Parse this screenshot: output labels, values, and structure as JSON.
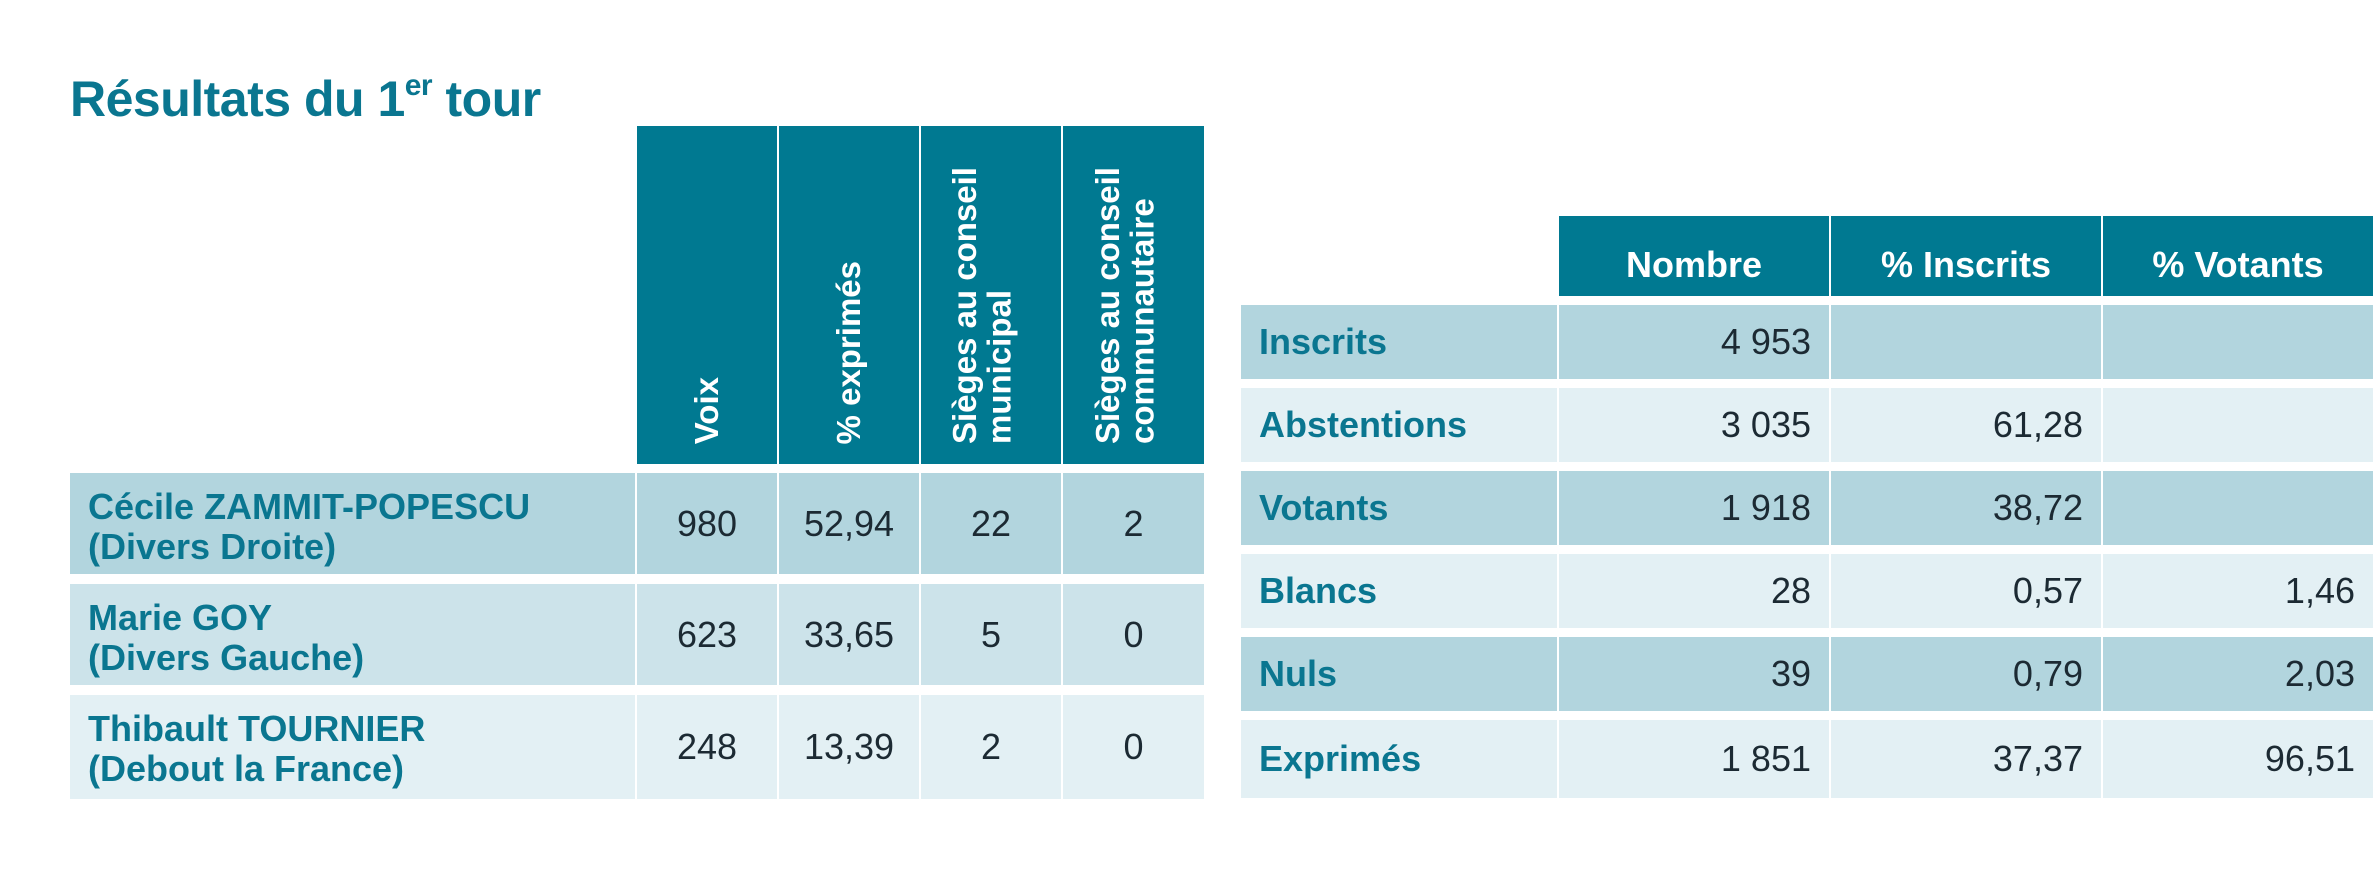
{
  "title": {
    "main": "Résultats du 1",
    "sup": "er",
    "end": " tour"
  },
  "results": {
    "headers": [
      "Voix",
      "% exprimés",
      "Sièges au conseil municipal",
      "Sièges au conseil communautaire"
    ],
    "rows": [
      {
        "name": "Cécile ZAMMIT-POPESCU",
        "party": "(Divers Droite)",
        "voix": "980",
        "pct": "52,94",
        "municipal": "22",
        "communautaire": "2"
      },
      {
        "name": "Marie GOY",
        "party": "(Divers Gauche)",
        "voix": "623",
        "pct": "33,65",
        "municipal": "5",
        "communautaire": "0"
      },
      {
        "name": "Thibault TOURNIER",
        "party": "(Debout la France)",
        "voix": "248",
        "pct": "13,39",
        "municipal": "2",
        "communautaire": "0"
      }
    ]
  },
  "stats": {
    "headers": [
      "Nombre",
      "% Inscrits",
      "% Votants"
    ],
    "rows": [
      {
        "label": "Inscrits",
        "nombre": "4 953",
        "inscrits": "",
        "votants": ""
      },
      {
        "label": "Abstentions",
        "nombre": "3 035",
        "inscrits": "61,28",
        "votants": ""
      },
      {
        "label": "Votants",
        "nombre": "1 918",
        "inscrits": "38,72",
        "votants": ""
      },
      {
        "label": "Blancs",
        "nombre": "28",
        "inscrits": "0,57",
        "votants": "1,46"
      },
      {
        "label": "Nuls",
        "nombre": "39",
        "inscrits": "0,79",
        "votants": "2,03"
      },
      {
        "label": "Exprimés",
        "nombre": "1 851",
        "inscrits": "37,37",
        "votants": "96,51"
      }
    ]
  },
  "colors": {
    "header": "#007991",
    "title": "#0a7690",
    "row_dark": "#b2d5de",
    "row_mid": "#cce3ea",
    "row_light": "#e3f0f4"
  }
}
